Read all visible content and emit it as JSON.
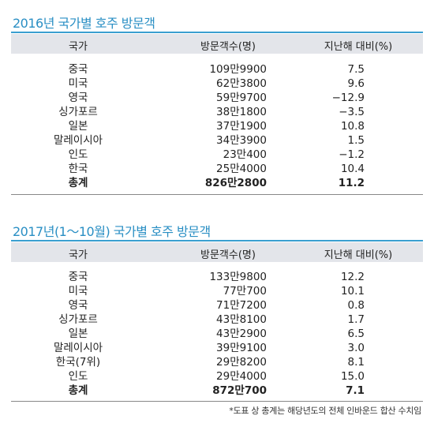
{
  "table2016": {
    "title": "2016년 국가별 호주 방문객",
    "headers": [
      "국가",
      "방문객수(명)",
      "지난해 대비(%)"
    ],
    "rows": [
      {
        "country": "중국",
        "visitors": "109만9900",
        "change": "7.5"
      },
      {
        "country": "미국",
        "visitors": "62만3800",
        "change": "9.6"
      },
      {
        "country": "영국",
        "visitors": "59만9700",
        "change": "−12.9"
      },
      {
        "country": "싱가포르",
        "visitors": "38만1800",
        "change": "−3.5"
      },
      {
        "country": "일본",
        "visitors": "37만1900",
        "change": "10.8"
      },
      {
        "country": "말레이시아",
        "visitors": "34만3900",
        "change": "1.5"
      },
      {
        "country": "인도",
        "visitors": "23만400",
        "change": "−1.2"
      },
      {
        "country": "한국",
        "visitors": "25만4000",
        "change": "10.4"
      },
      {
        "country": "총계",
        "visitors": "826만2800",
        "change": "11.2"
      }
    ]
  },
  "table2017": {
    "title": "2017년(1～10월) 국가별 호주 방문객",
    "headers": [
      "국가",
      "방문객수(명)",
      "지난해 대비(%)"
    ],
    "rows": [
      {
        "country": "중국",
        "visitors": "133만9800",
        "change": "12.2"
      },
      {
        "country": "미국",
        "visitors": "77만700",
        "change": "10.1"
      },
      {
        "country": "영국",
        "visitors": "71만7200",
        "change": "0.8"
      },
      {
        "country": "싱가포르",
        "visitors": "43만8100",
        "change": "1.7"
      },
      {
        "country": "일본",
        "visitors": "43만2900",
        "change": "6.5"
      },
      {
        "country": "말레이시아",
        "visitors": "39만9100",
        "change": "3.0"
      },
      {
        "country": "한국(7위)",
        "visitors": "29만8200",
        "change": "8.1"
      },
      {
        "country": "인도",
        "visitors": "29만4000",
        "change": "15.0"
      },
      {
        "country": "총계",
        "visitors": "872만700",
        "change": "7.1"
      }
    ]
  },
  "footnote": "*도표 상 총계는 해당년도의 전체 인바운드 합산 수치임",
  "colors": {
    "accent": "#2a8fc4",
    "header_bg": "#e3e5ea"
  }
}
